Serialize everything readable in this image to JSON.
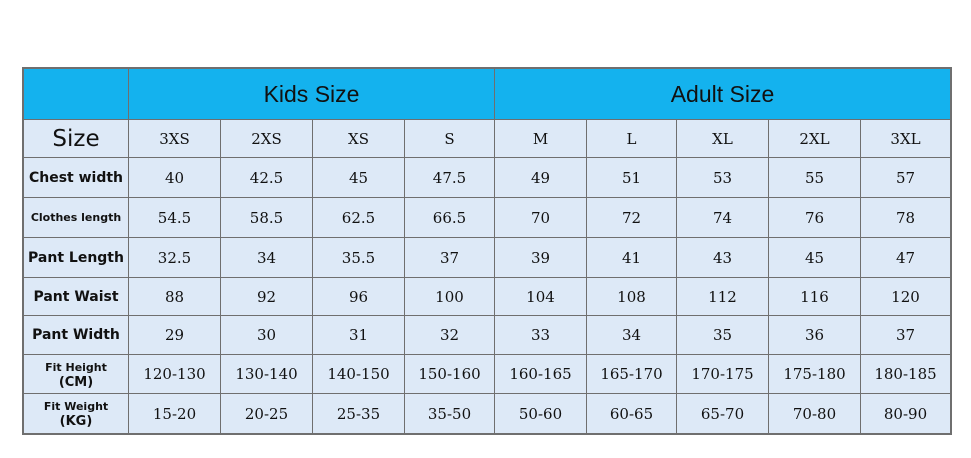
{
  "table": {
    "groups": [
      "Kids Size",
      "Adult Size"
    ],
    "size_label": "Size",
    "sizes": [
      "3XS",
      "2XS",
      "XS",
      "S",
      "M",
      "L",
      "XL",
      "2XL",
      "3XL"
    ],
    "rows": [
      {
        "label": "Chest width",
        "values": [
          "40",
          "42.5",
          "45",
          "47.5",
          "49",
          "51",
          "53",
          "55",
          "57"
        ]
      },
      {
        "label": "Clothes length",
        "values": [
          "54.5",
          "58.5",
          "62.5",
          "66.5",
          "70",
          "72",
          "74",
          "76",
          "78"
        ]
      },
      {
        "label": "Pant Length",
        "values": [
          "32.5",
          "34",
          "35.5",
          "37",
          "39",
          "41",
          "43",
          "45",
          "47"
        ]
      },
      {
        "label": "Pant Waist",
        "values": [
          "88",
          "92",
          "96",
          "100",
          "104",
          "108",
          "112",
          "116",
          "120"
        ]
      },
      {
        "label": "Pant Width",
        "values": [
          "29",
          "30",
          "31",
          "32",
          "33",
          "34",
          "35",
          "36",
          "37"
        ]
      },
      {
        "label": "Fit Height",
        "unit": "(CM)",
        "values": [
          "120-130",
          "130-140",
          "140-150",
          "150-160",
          "160-165",
          "165-170",
          "170-175",
          "175-180",
          "180-185"
        ]
      },
      {
        "label": "Fit Weight",
        "unit": "(KG)",
        "values": [
          "15-20",
          "20-25",
          "25-35",
          "35-50",
          "50-60",
          "60-65",
          "65-70",
          "70-80",
          "80-90"
        ]
      }
    ]
  }
}
